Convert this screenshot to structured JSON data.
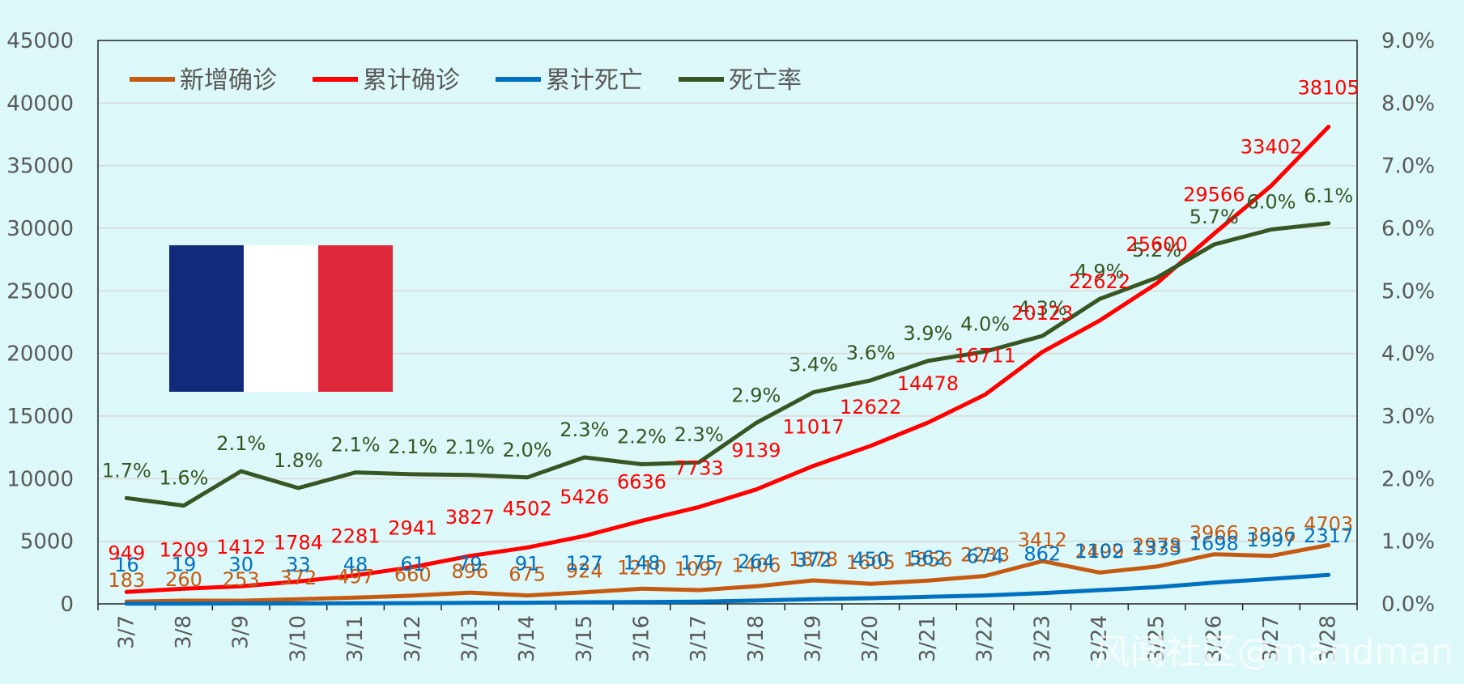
{
  "chart_data": {
    "type": "line",
    "x": [
      "3/7",
      "3/8",
      "3/9",
      "3/10",
      "3/11",
      "3/12",
      "3/13",
      "3/14",
      "3/15",
      "3/16",
      "3/17",
      "3/18",
      "3/19",
      "3/20",
      "3/21",
      "3/22",
      "3/23",
      "3/24",
      "3/25",
      "3/26",
      "3/27",
      "3/28"
    ],
    "y_left": {
      "range": [
        0,
        45000
      ],
      "ticks": [
        "0",
        "5000",
        "10000",
        "15000",
        "20000",
        "25000",
        "30000",
        "35000",
        "40000",
        "45000"
      ]
    },
    "y_right": {
      "range": [
        0,
        9
      ],
      "unit": "%",
      "ticks": [
        "0.0%",
        "1.0%",
        "2.0%",
        "3.0%",
        "4.0%",
        "5.0%",
        "6.0%",
        "7.0%",
        "8.0%",
        "9.0%"
      ]
    },
    "grid": true,
    "legend_position": "top-left",
    "series": [
      {
        "name": "新增确诊",
        "color": "#c55a11",
        "axis": "left",
        "values": [
          183,
          260,
          253,
          372,
          497,
          660,
          896,
          675,
          924,
          1210,
          1097,
          1406,
          1878,
          1605,
          1856,
          2233,
          3412,
          2499,
          2978,
          3966,
          3836,
          4703
        ],
        "labels": [
          "183",
          "260",
          "253",
          "372",
          "497",
          "660",
          "896",
          "675",
          "924",
          "1210",
          "1097",
          "1406",
          "1878",
          "1605",
          "1856",
          "2233",
          "3412",
          "2499",
          "2978",
          "3966",
          "3836",
          "4703"
        ]
      },
      {
        "name": "累计确诊",
        "color": "#ff0000",
        "axis": "left",
        "values": [
          949,
          1209,
          1412,
          1784,
          2281,
          2941,
          3827,
          4502,
          5426,
          6636,
          7733,
          9139,
          11017,
          12622,
          14478,
          16711,
          20123,
          22622,
          25600,
          29566,
          33402,
          38105
        ],
        "labels": [
          "949",
          "1209",
          "1412",
          "1784",
          "2281",
          "2941",
          "3827",
          "4502",
          "5426",
          "6636",
          "7733",
          "9139",
          "11017",
          "12622",
          "14478",
          "16711",
          "20123",
          "22622",
          "25600",
          "29566",
          "33402",
          "38105"
        ]
      },
      {
        "name": "累计死亡",
        "color": "#0070c0",
        "axis": "left",
        "values": [
          16,
          19,
          30,
          33,
          48,
          61,
          79,
          91,
          127,
          148,
          175,
          264,
          372,
          450,
          562,
          674,
          862,
          1102,
          1333,
          1698,
          1997,
          2317
        ],
        "labels": [
          "16",
          "19",
          "30",
          "33",
          "48",
          "61",
          "79",
          "91",
          "127",
          "148",
          "175",
          "264",
          "372",
          "450",
          "562",
          "674",
          "862",
          "1102",
          "1333",
          "1698",
          "1997",
          "2317"
        ]
      },
      {
        "name": "死亡率",
        "color": "#375623",
        "axis": "right",
        "values": [
          1.69,
          1.57,
          2.12,
          1.85,
          2.1,
          2.07,
          2.06,
          2.02,
          2.34,
          2.23,
          2.26,
          2.89,
          3.38,
          3.57,
          3.88,
          4.03,
          4.28,
          4.87,
          5.21,
          5.74,
          5.98,
          6.08
        ],
        "labels": [
          "1.7%",
          "1.6%",
          "2.1%",
          "1.8%",
          "2.1%",
          "2.1%",
          "2.1%",
          "2.0%",
          "2.3%",
          "2.2%",
          "2.3%",
          "2.9%",
          "3.4%",
          "3.6%",
          "3.9%",
          "4.0%",
          "4.3%",
          "4.9%",
          "5.2%",
          "5.7%",
          "6.0%",
          "6.1%"
        ]
      }
    ],
    "flag_colors": [
      "#132a7a",
      "#ffffff",
      "#e0283b"
    ],
    "watermark": "风闻社区@mandman"
  }
}
